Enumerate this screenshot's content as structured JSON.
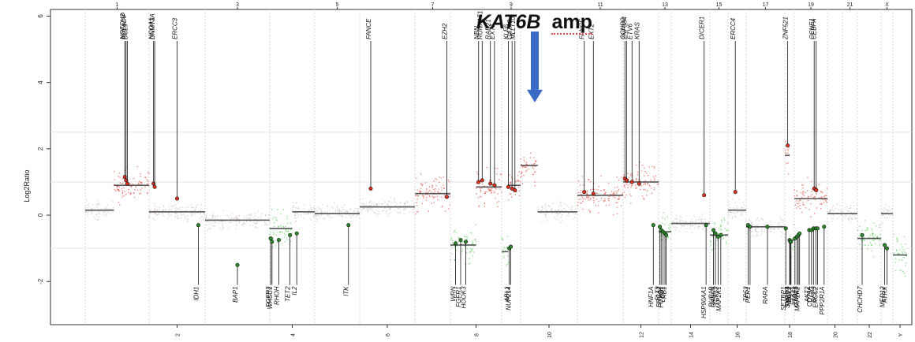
{
  "chart_data": {
    "type": "scatter",
    "title": "",
    "xlabel": "",
    "ylabel": "Log2Ratio",
    "ylim": [
      -3.3,
      6.2
    ],
    "yticks": [
      "-2",
      "0",
      "2",
      "4",
      "6"
    ],
    "ytick_values": [
      -2,
      0,
      2,
      4,
      6
    ],
    "grid": true,
    "chromosomes": [
      "1",
      "2",
      "3",
      "4",
      "5",
      "6",
      "7",
      "8",
      "9",
      "10",
      "11",
      "12",
      "13",
      "14",
      "15",
      "16",
      "17",
      "18",
      "19",
      "20",
      "21",
      "22",
      "X",
      "Y"
    ],
    "top_labels": [
      "1",
      "3",
      "5",
      "7",
      "9",
      "11",
      "13",
      "15",
      "17",
      "19",
      "21",
      "X"
    ],
    "bottom_labels": [
      "2",
      "4",
      "6",
      "8",
      "10",
      "12",
      "14",
      "16",
      "18",
      "20",
      "22",
      "Y"
    ],
    "colors": {
      "gain": "#e03020",
      "loss": "#3ec43e",
      "neutral": "#8a8a8a",
      "arrow": "#3a6bc4",
      "segment": "#555555"
    },
    "segments": [
      {
        "chrom": "1",
        "from": 0.0,
        "to": 0.45,
        "value": 0.15
      },
      {
        "chrom": "1",
        "from": 0.45,
        "to": 1.0,
        "value": 0.9
      },
      {
        "chrom": "2",
        "from": 0.0,
        "to": 1.0,
        "value": 0.1
      },
      {
        "chrom": "3",
        "from": 0.0,
        "to": 1.0,
        "value": -0.15
      },
      {
        "chrom": "4",
        "from": 0.0,
        "to": 0.5,
        "value": -0.4
      },
      {
        "chrom": "4",
        "from": 0.5,
        "to": 1.0,
        "value": 0.1
      },
      {
        "chrom": "5",
        "from": 0.0,
        "to": 1.0,
        "value": 0.05
      },
      {
        "chrom": "6",
        "from": 0.0,
        "to": 1.0,
        "value": 0.25
      },
      {
        "chrom": "7",
        "from": 0.0,
        "to": 1.0,
        "value": 0.65
      },
      {
        "chrom": "8",
        "from": 0.0,
        "to": 0.5,
        "value": -0.9
      },
      {
        "chrom": "8",
        "from": 0.5,
        "to": 1.0,
        "value": 0.85
      },
      {
        "chrom": "9",
        "from": 0.0,
        "to": 0.35,
        "value": -1.1
      },
      {
        "chrom": "9",
        "from": 0.35,
        "to": 1.0,
        "value": 0.9
      },
      {
        "chrom": "10",
        "from": 0.0,
        "to": 0.3,
        "value": 1.5
      },
      {
        "chrom": "10",
        "from": 0.3,
        "to": 1.0,
        "value": 0.1
      },
      {
        "chrom": "11",
        "from": 0.0,
        "to": 1.0,
        "value": 0.6
      },
      {
        "chrom": "12",
        "from": 0.0,
        "to": 1.0,
        "value": 1.0
      },
      {
        "chrom": "13",
        "from": 0.0,
        "to": 1.0,
        "value": -0.5
      },
      {
        "chrom": "14",
        "from": 0.0,
        "to": 1.0,
        "value": -0.25
      },
      {
        "chrom": "15",
        "from": 0.0,
        "to": 1.0,
        "value": -0.6
      },
      {
        "chrom": "16",
        "from": 0.0,
        "to": 1.0,
        "value": 0.15
      },
      {
        "chrom": "17",
        "from": 0.0,
        "to": 1.0,
        "value": -0.35
      },
      {
        "chrom": "18",
        "from": 0.0,
        "to": 0.5,
        "value": 1.8
      },
      {
        "chrom": "18",
        "from": 0.5,
        "to": 1.0,
        "value": -0.75
      },
      {
        "chrom": "19",
        "from": 0.0,
        "to": 1.0,
        "value": 0.5
      },
      {
        "chrom": "20",
        "from": 0.0,
        "to": 1.0,
        "value": 0.05
      },
      {
        "chrom": "21",
        "from": 0.0,
        "to": 1.0,
        "value": 0.05
      },
      {
        "chrom": "22",
        "from": 0.0,
        "to": 1.0,
        "value": -0.7
      },
      {
        "chrom": "X",
        "from": 0.0,
        "to": 1.0,
        "value": 0.05
      },
      {
        "chrom": "Y",
        "from": 0.0,
        "to": 1.0,
        "value": -1.2
      }
    ],
    "labeled_genes": [
      {
        "name": "NOTCH2",
        "chrom": "1",
        "pos": 0.62,
        "value": 1.15,
        "label_side": "top"
      },
      {
        "name": "PDE4DIP",
        "chrom": "1",
        "pos": 0.64,
        "value": 1.05,
        "label_side": "top"
      },
      {
        "name": "BCL9",
        "chrom": "1",
        "pos": 0.66,
        "value": 0.95,
        "label_side": "top"
      },
      {
        "name": "NCOA1",
        "chrom": "2",
        "pos": 0.08,
        "value": 0.95,
        "label_side": "top"
      },
      {
        "name": "DNMT3A",
        "chrom": "2",
        "pos": 0.1,
        "value": 0.85,
        "label_side": "top"
      },
      {
        "name": "ERCC3",
        "chrom": "2",
        "pos": 0.5,
        "value": 0.5,
        "label_side": "top"
      },
      {
        "name": "IDH1",
        "chrom": "2",
        "pos": 0.88,
        "value": -0.3,
        "label_side": "bottom"
      },
      {
        "name": "BAP1",
        "chrom": "3",
        "pos": 0.5,
        "value": -1.5,
        "label_side": "bottom"
      },
      {
        "name": "FGFR3",
        "chrom": "4",
        "pos": 0.02,
        "value": -0.7,
        "label_side": "bottom"
      },
      {
        "name": "WHSC1",
        "chrom": "4",
        "pos": 0.05,
        "value": -0.8,
        "label_side": "bottom"
      },
      {
        "name": "RHOH",
        "chrom": "4",
        "pos": 0.2,
        "value": -0.75,
        "label_side": "bottom"
      },
      {
        "name": "TET2",
        "chrom": "4",
        "pos": 0.45,
        "value": -0.6,
        "label_side": "bottom"
      },
      {
        "name": "IL2",
        "chrom": "4",
        "pos": 0.6,
        "value": -0.55,
        "label_side": "bottom"
      },
      {
        "name": "ITK",
        "chrom": "5",
        "pos": 0.75,
        "value": -0.3,
        "label_side": "bottom"
      },
      {
        "name": "FANCE",
        "chrom": "6",
        "pos": 0.2,
        "value": 0.8,
        "label_side": "top"
      },
      {
        "name": "EZH2",
        "chrom": "7",
        "pos": 0.9,
        "value": 0.55,
        "label_side": "top"
      },
      {
        "name": "WRN",
        "chrom": "8",
        "pos": 0.1,
        "value": -0.85,
        "label_side": "bottom"
      },
      {
        "name": "FGFR1",
        "chrom": "8",
        "pos": 0.2,
        "value": -0.75,
        "label_side": "bottom"
      },
      {
        "name": "HOOK3",
        "chrom": "8",
        "pos": 0.3,
        "value": -0.8,
        "label_side": "bottom"
      },
      {
        "name": "NBN",
        "chrom": "8",
        "pos": 0.55,
        "value": 1.0,
        "label_side": "top"
      },
      {
        "name": "RUNX1T1",
        "chrom": "8",
        "pos": 0.62,
        "value": 1.05,
        "label_side": "top"
      },
      {
        "name": "RAD21",
        "chrom": "8",
        "pos": 0.78,
        "value": 0.95,
        "label_side": "top"
      },
      {
        "name": "EXT1",
        "chrom": "8",
        "pos": 0.86,
        "value": 0.9,
        "label_side": "top"
      },
      {
        "name": "KLF6",
        "chrom": "9",
        "pos": 0.35,
        "value": 0.85,
        "label_side": "top"
      },
      {
        "name": "ABL1",
        "chrom": "9",
        "pos": 0.4,
        "value": -1.0,
        "label_side": "bottom"
      },
      {
        "name": "NUP214",
        "chrom": "9",
        "pos": 0.48,
        "value": -0.95,
        "label_side": "bottom"
      },
      {
        "name": "GATA3",
        "chrom": "9",
        "pos": 0.55,
        "value": 0.8,
        "label_side": "top"
      },
      {
        "name": "MLLT10",
        "chrom": "9",
        "pos": 0.7,
        "value": 0.75,
        "label_side": "top"
      },
      {
        "name": "FANCF",
        "chrom": "11",
        "pos": 0.15,
        "value": 0.7,
        "label_side": "top"
      },
      {
        "name": "EXT2",
        "chrom": "11",
        "pos": 0.35,
        "value": 0.65,
        "label_side": "top"
      },
      {
        "name": "CCND2",
        "chrom": "12",
        "pos": 0.05,
        "value": 1.1,
        "label_side": "top"
      },
      {
        "name": "ZNF384",
        "chrom": "12",
        "pos": 0.1,
        "value": 1.05,
        "label_side": "top"
      },
      {
        "name": "ETV6",
        "chrom": "12",
        "pos": 0.25,
        "value": 1.0,
        "label_side": "top"
      },
      {
        "name": "KRAS",
        "chrom": "12",
        "pos": 0.45,
        "value": 0.95,
        "label_side": "top"
      },
      {
        "name": "HNF1A",
        "chrom": "12",
        "pos": 0.85,
        "value": -0.3,
        "label_side": "bottom"
      },
      {
        "name": "FLT3",
        "chrom": "13",
        "pos": 0.1,
        "value": -0.35,
        "label_side": "bottom"
      },
      {
        "name": "BRCA2",
        "chrom": "13",
        "pos": 0.2,
        "value": -0.45,
        "label_side": "bottom"
      },
      {
        "name": "FOXO1",
        "chrom": "13",
        "pos": 0.35,
        "value": -0.5,
        "label_side": "bottom"
      },
      {
        "name": "LCP1",
        "chrom": "13",
        "pos": 0.5,
        "value": -0.55,
        "label_side": "bottom"
      },
      {
        "name": "RB1",
        "chrom": "13",
        "pos": 0.6,
        "value": -0.6,
        "label_side": "bottom"
      },
      {
        "name": "HSP90AA1",
        "chrom": "14",
        "pos": 0.9,
        "value": -0.3,
        "label_side": "bottom"
      },
      {
        "name": "DICER1",
        "chrom": "14",
        "pos": 0.85,
        "value": 0.6,
        "label_side": "top"
      },
      {
        "name": "BUB1B",
        "chrom": "15",
        "pos": 0.2,
        "value": -0.45,
        "label_side": "bottom"
      },
      {
        "name": "CASC5",
        "chrom": "15",
        "pos": 0.3,
        "value": -0.55,
        "label_side": "bottom"
      },
      {
        "name": "TCF12",
        "chrom": "15",
        "pos": 0.45,
        "value": -0.65,
        "label_side": "bottom"
      },
      {
        "name": "MAP2K1",
        "chrom": "15",
        "pos": 0.6,
        "value": -0.6,
        "label_side": "bottom"
      },
      {
        "name": "ERCC4",
        "chrom": "16",
        "pos": 0.4,
        "value": 0.7,
        "label_side": "top"
      },
      {
        "name": "TP53",
        "chrom": "17",
        "pos": 0.05,
        "value": -0.3,
        "label_side": "bottom"
      },
      {
        "name": "PER1",
        "chrom": "17",
        "pos": 0.1,
        "value": -0.35,
        "label_side": "bottom"
      },
      {
        "name": "RARA",
        "chrom": "17",
        "pos": 0.55,
        "value": -0.35,
        "label_side": "bottom"
      },
      {
        "name": "SETBP1",
        "chrom": "18",
        "pos": 0.1,
        "value": -0.4,
        "label_side": "bottom"
      },
      {
        "name": "ZNF521",
        "chrom": "18",
        "pos": 0.3,
        "value": 2.1,
        "label_side": "top"
      },
      {
        "name": "SMAD4",
        "chrom": "18",
        "pos": 0.5,
        "value": -0.75,
        "label_side": "bottom"
      },
      {
        "name": "MALT1",
        "chrom": "18",
        "pos": 0.58,
        "value": -0.8,
        "label_side": "bottom"
      },
      {
        "name": "BCL2",
        "chrom": "18",
        "pos": 0.65,
        "value": -0.8,
        "label_side": "bottom"
      },
      {
        "name": "STK11",
        "chrom": "19",
        "pos": 0.02,
        "value": -0.7,
        "label_side": "bottom"
      },
      {
        "name": "TCF3",
        "chrom": "19",
        "pos": 0.08,
        "value": -0.65,
        "label_side": "bottom"
      },
      {
        "name": "GNA11",
        "chrom": "19",
        "pos": 0.12,
        "value": -0.6,
        "label_side": "bottom"
      },
      {
        "name": "MAP2K2",
        "chrom": "19",
        "pos": 0.16,
        "value": -0.55,
        "label_side": "bottom"
      },
      {
        "name": "AKT2",
        "chrom": "19",
        "pos": 0.45,
        "value": -0.45,
        "label_side": "bottom"
      },
      {
        "name": "CD79A",
        "chrom": "19",
        "pos": 0.52,
        "value": -0.45,
        "label_side": "bottom"
      },
      {
        "name": "CIC",
        "chrom": "19",
        "pos": 0.58,
        "value": -0.4,
        "label_side": "bottom"
      },
      {
        "name": "BCL3",
        "chrom": "19",
        "pos": 0.65,
        "value": -0.4,
        "label_side": "bottom"
      },
      {
        "name": "ERCC2",
        "chrom": "19",
        "pos": 0.7,
        "value": -0.4,
        "label_side": "bottom"
      },
      {
        "name": "PPP2R1A",
        "chrom": "19",
        "pos": 0.9,
        "value": -0.35,
        "label_side": "bottom"
      },
      {
        "name": "CCNE1",
        "chrom": "19",
        "pos": 0.6,
        "value": 0.8,
        "label_side": "top"
      },
      {
        "name": "CEBPA",
        "chrom": "19",
        "pos": 0.66,
        "value": 0.75,
        "label_side": "top"
      },
      {
        "name": "CHCHD7",
        "chrom": "22",
        "pos": 0.2,
        "value": -0.6,
        "label_side": "bottom"
      },
      {
        "name": "MED12",
        "chrom": "X",
        "pos": 0.3,
        "value": -0.9,
        "label_side": "bottom"
      },
      {
        "name": "ATRX",
        "chrom": "X",
        "pos": 0.5,
        "value": -1.0,
        "label_side": "bottom"
      }
    ],
    "annotation": {
      "gene": "KAT6B",
      "type": "amp",
      "chrom": "10",
      "pos": 0.25,
      "value": 3.4
    }
  }
}
